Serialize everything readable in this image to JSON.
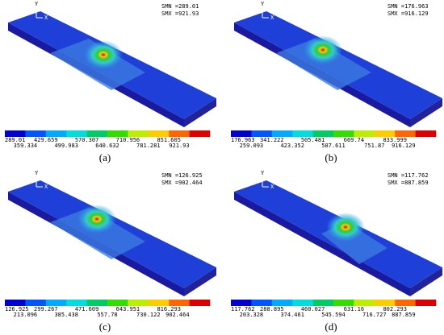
{
  "panels": [
    {
      "caption": "(a)",
      "smn": "SMN =289.01",
      "smx": "SMX =921.93",
      "axis_y": "Y",
      "axis_x": "X",
      "legend_top": [
        "289.01",
        "429.659",
        "570.307",
        "710.956",
        "851.605"
      ],
      "legend_bottom": [
        "359.334",
        "499.983",
        "640.632",
        "781.281",
        "921.93"
      ]
    },
    {
      "caption": "(b)",
      "smn": "SMN =176.963",
      "smx": "SMX =916.129",
      "axis_y": "Y",
      "axis_x": "X",
      "legend_top": [
        "176.963",
        "341.222",
        "505.481",
        "669.74",
        "833.999"
      ],
      "legend_bottom": [
        "259.093",
        "423.352",
        "587.611",
        "751.87",
        "916.129"
      ]
    },
    {
      "caption": "(c)",
      "smn": "SMN =126.925",
      "smx": "SMX =902.464",
      "axis_y": "Y",
      "axis_x": "X",
      "legend_top": [
        "126.925",
        "299.267",
        "471.609",
        "643.951",
        "816.293"
      ],
      "legend_bottom": [
        "213.096",
        "385.438",
        "557.78",
        "730.122",
        "902.464"
      ]
    },
    {
      "caption": "(d)",
      "smn": "SMN =117.762",
      "smx": "SMX =887.859",
      "axis_y": "Y",
      "axis_x": "X",
      "legend_top": [
        "117.762",
        "288.895",
        "460.027",
        "631.16",
        "802.293"
      ],
      "legend_bottom": [
        "203.328",
        "374.461",
        "545.594",
        "716.727",
        "887.859"
      ]
    }
  ]
}
